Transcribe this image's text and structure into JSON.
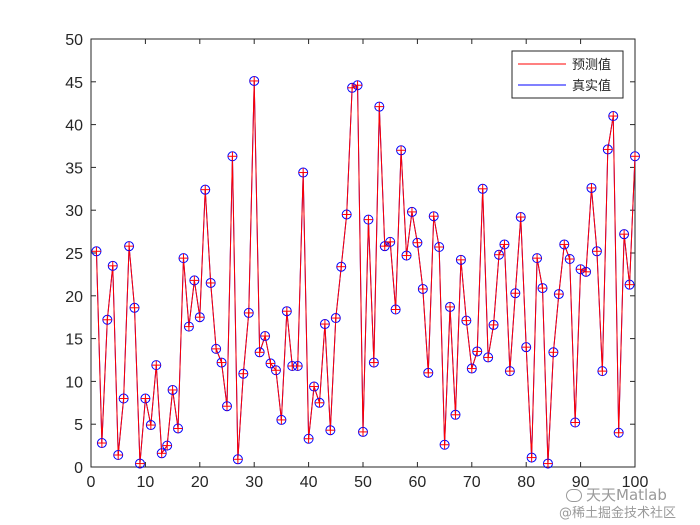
{
  "chart_data": {
    "type": "line",
    "title": "",
    "xlabel": "",
    "ylabel": "",
    "xlim": [
      0,
      100
    ],
    "ylim": [
      0,
      50
    ],
    "xticks": [
      0,
      10,
      20,
      30,
      40,
      50,
      60,
      70,
      80,
      90,
      100
    ],
    "yticks": [
      0,
      5,
      10,
      15,
      20,
      25,
      30,
      35,
      40,
      45,
      50
    ],
    "grid": false,
    "legend": "top-right",
    "x": [
      1,
      2,
      3,
      4,
      5,
      6,
      7,
      8,
      9,
      10,
      11,
      12,
      13,
      14,
      15,
      16,
      17,
      18,
      19,
      20,
      21,
      22,
      23,
      24,
      25,
      26,
      27,
      28,
      29,
      30,
      31,
      32,
      33,
      34,
      35,
      36,
      37,
      38,
      39,
      40,
      41,
      42,
      43,
      44,
      45,
      46,
      47,
      48,
      49,
      50,
      51,
      52,
      53,
      54,
      55,
      56,
      57,
      58,
      59,
      60,
      61,
      62,
      63,
      64,
      65,
      66,
      67,
      68,
      69,
      70,
      71,
      72,
      73,
      74,
      75,
      76,
      77,
      78,
      79,
      80,
      81,
      82,
      83,
      84,
      85,
      86,
      87,
      88,
      89,
      90,
      91,
      92,
      93,
      94,
      95,
      96,
      97,
      98,
      99,
      100
    ],
    "series": [
      {
        "name": "预测值",
        "color": "#ff0000",
        "marker": "plus",
        "values": [
          25.2,
          2.8,
          17.2,
          23.5,
          1.4,
          8.0,
          25.8,
          18.6,
          0.4,
          8.0,
          4.9,
          11.9,
          1.6,
          2.5,
          9.0,
          4.5,
          24.4,
          16.4,
          21.8,
          17.5,
          32.4,
          21.5,
          13.8,
          12.2,
          7.1,
          36.3,
          0.9,
          10.9,
          18.0,
          45.1,
          13.4,
          15.3,
          12.1,
          11.3,
          5.5,
          18.2,
          11.8,
          11.8,
          34.4,
          3.3,
          9.4,
          7.5,
          16.7,
          4.3,
          17.4,
          23.4,
          29.5,
          44.3,
          44.6,
          4.1,
          28.9,
          12.2,
          42.1,
          25.8,
          26.3,
          18.4,
          37.0,
          24.7,
          29.8,
          26.2,
          20.8,
          11.0,
          29.3,
          25.7,
          2.6,
          18.7,
          6.1,
          24.2,
          17.1,
          11.5,
          13.5,
          32.5,
          12.8,
          16.6,
          24.8,
          26.0,
          11.2,
          20.3,
          29.2,
          14.0,
          1.1,
          24.4,
          20.9,
          0.4,
          13.4,
          20.2,
          26.0,
          24.3,
          5.2,
          23.1,
          22.8,
          32.6,
          25.2,
          11.2,
          37.1,
          41.0,
          4.0,
          27.2,
          21.3,
          36.3
        ]
      },
      {
        "name": "真实值",
        "color": "#0000ff",
        "marker": "circle",
        "values": [
          25.2,
          2.8,
          17.2,
          23.5,
          1.4,
          8.0,
          25.8,
          18.6,
          0.4,
          8.0,
          4.9,
          11.9,
          1.6,
          2.5,
          9.0,
          4.5,
          24.4,
          16.4,
          21.8,
          17.5,
          32.4,
          21.5,
          13.8,
          12.2,
          7.1,
          36.3,
          0.9,
          10.9,
          18.0,
          45.1,
          13.4,
          15.3,
          12.1,
          11.3,
          5.5,
          18.2,
          11.8,
          11.8,
          34.4,
          3.3,
          9.4,
          7.5,
          16.7,
          4.3,
          17.4,
          23.4,
          29.5,
          44.3,
          44.6,
          4.1,
          28.9,
          12.2,
          42.1,
          25.8,
          26.3,
          18.4,
          37.0,
          24.7,
          29.8,
          26.2,
          20.8,
          11.0,
          29.3,
          25.7,
          2.6,
          18.7,
          6.1,
          24.2,
          17.1,
          11.5,
          13.5,
          32.5,
          12.8,
          16.6,
          24.8,
          26.0,
          11.2,
          20.3,
          29.2,
          14.0,
          1.1,
          24.4,
          20.9,
          0.4,
          13.4,
          20.2,
          26.0,
          24.3,
          5.2,
          23.1,
          22.8,
          32.6,
          25.2,
          11.2,
          37.1,
          41.0,
          4.0,
          27.2,
          21.3,
          36.3
        ]
      }
    ]
  },
  "watermark": {
    "line1": "天天Matlab",
    "line2": "@稀土掘金技术社区"
  }
}
